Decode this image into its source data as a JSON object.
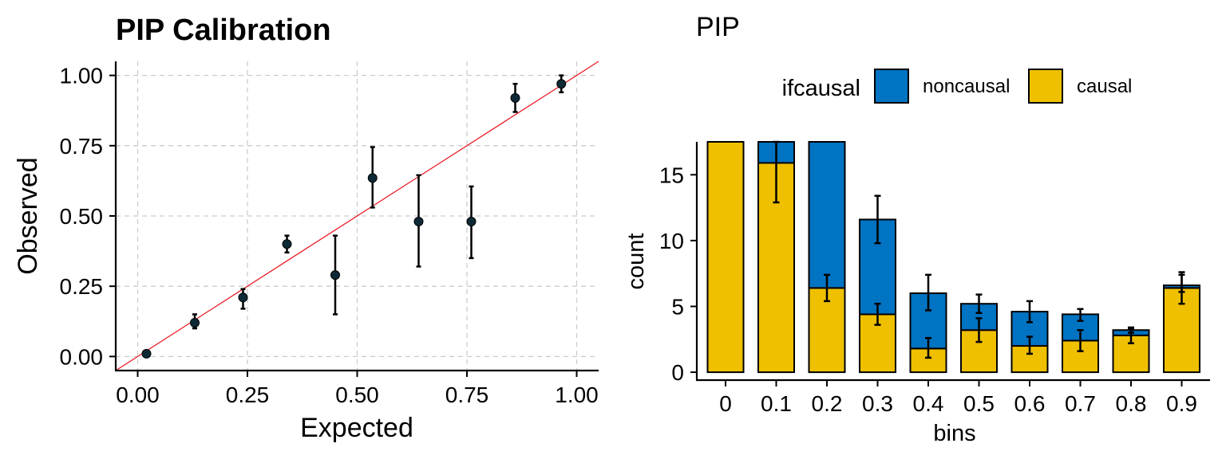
{
  "chart_data": [
    {
      "type": "scatter",
      "title": "PIP Calibration",
      "xlabel": "Expected",
      "ylabel": "Observed",
      "xlim": [
        -0.05,
        1.05
      ],
      "ylim": [
        -0.05,
        1.05
      ],
      "xticks": [
        "0.00",
        "0.25",
        "0.50",
        "0.75",
        "1.00"
      ],
      "yticks": [
        "0.00",
        "0.25",
        "0.50",
        "0.75",
        "1.00"
      ],
      "grid": true,
      "reference_line": {
        "slope": 1,
        "intercept": 0,
        "color": "#e8121b"
      },
      "points": [
        {
          "x": 0.02,
          "y": 0.01,
          "lo": 0.005,
          "hi": 0.015
        },
        {
          "x": 0.13,
          "y": 0.12,
          "lo": 0.1,
          "hi": 0.15
        },
        {
          "x": 0.24,
          "y": 0.21,
          "lo": 0.17,
          "hi": 0.24
        },
        {
          "x": 0.34,
          "y": 0.4,
          "lo": 0.37,
          "hi": 0.43
        },
        {
          "x": 0.45,
          "y": 0.29,
          "lo": 0.15,
          "hi": 0.43
        },
        {
          "x": 0.535,
          "y": 0.635,
          "lo": 0.53,
          "hi": 0.745
        },
        {
          "x": 0.64,
          "y": 0.48,
          "lo": 0.32,
          "hi": 0.645
        },
        {
          "x": 0.76,
          "y": 0.48,
          "lo": 0.35,
          "hi": 0.605
        },
        {
          "x": 0.86,
          "y": 0.92,
          "lo": 0.87,
          "hi": 0.97
        },
        {
          "x": 0.965,
          "y": 0.97,
          "lo": 0.94,
          "hi": 1.0
        }
      ],
      "point_color": "#0d2a36"
    },
    {
      "type": "bar",
      "stacked": true,
      "title": "PIP",
      "xlabel": "bins",
      "ylabel": "count",
      "categories": [
        "0",
        "0.1",
        "0.2",
        "0.3",
        "0.4",
        "0.5",
        "0.6",
        "0.7",
        "0.8",
        "0.9"
      ],
      "ylim": [
        -0.6,
        17.5
      ],
      "yticks": [
        0,
        5,
        10,
        15
      ],
      "legend": {
        "title": "ifcausal",
        "placement": "top"
      },
      "series": [
        {
          "name": "causal",
          "color": "#efc000",
          "values": [
            17.5,
            15.9,
            6.4,
            4.4,
            1.8,
            3.2,
            2.0,
            2.4,
            2.8,
            6.4
          ],
          "err_lo": [
            null,
            12.9,
            5.4,
            3.6,
            1.1,
            2.3,
            1.4,
            1.6,
            2.2,
            5.2
          ],
          "err_hi": [
            null,
            17.5,
            7.4,
            5.2,
            2.6,
            4.1,
            2.7,
            3.2,
            3.3,
            7.4
          ]
        },
        {
          "name": "noncausal",
          "color": "#0073c2",
          "values": [
            0,
            1.6,
            11.1,
            7.2,
            4.2,
            2.0,
            2.6,
            2.0,
            0.4,
            0.2
          ],
          "err_lo": [
            null,
            null,
            null,
            9.8,
            4.7,
            4.5,
            3.8,
            3.9,
            3.0,
            6.1
          ],
          "err_hi": [
            null,
            null,
            null,
            13.4,
            7.4,
            5.9,
            5.4,
            4.8,
            3.4,
            7.6
          ]
        }
      ]
    }
  ]
}
